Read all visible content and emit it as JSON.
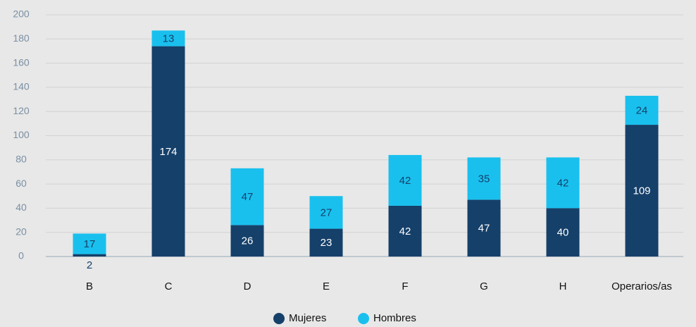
{
  "chart_data": {
    "type": "stacked_bar",
    "categories": [
      "B",
      "C",
      "D",
      "E",
      "F",
      "G",
      "H",
      "Operarios/as"
    ],
    "series": [
      {
        "name": "Mujeres",
        "color": "#15406a",
        "values": [
          2,
          174,
          26,
          23,
          42,
          47,
          40,
          109
        ]
      },
      {
        "name": "Hombres",
        "color": "#19c0ee",
        "values": [
          17,
          13,
          47,
          27,
          42,
          35,
          42,
          24
        ]
      }
    ],
    "ylim": [
      0,
      200
    ],
    "yticks": [
      0,
      20,
      40,
      60,
      80,
      100,
      120,
      140,
      160,
      180,
      200
    ],
    "grid": true,
    "legend": "bottom"
  }
}
